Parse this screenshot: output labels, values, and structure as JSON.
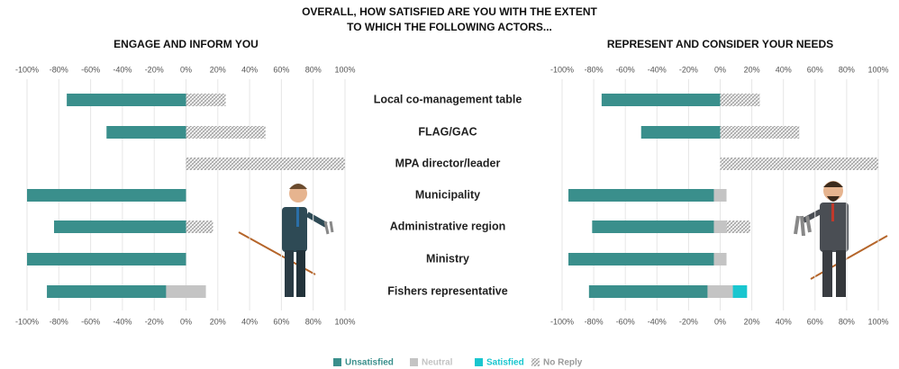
{
  "chart_data": {
    "type": "diverging_bar",
    "title": [
      "OVERALL, HOW SATISFIED ARE YOU WITH THE EXTENT",
      "TO WHICH THE FOLLOWING ACTORS..."
    ],
    "categories": [
      "Local co-management table",
      "FLAG/GAC",
      "MPA director/leader",
      "Municipality",
      "Administrative region",
      "Ministry",
      "Fishers representative"
    ],
    "xlim": [
      -100,
      100
    ],
    "xticks": [
      {
        "value": -100,
        "label": "-100%"
      },
      {
        "value": -80,
        "label": "-80%"
      },
      {
        "value": -60,
        "label": "-60%"
      },
      {
        "value": -40,
        "label": "-40%"
      },
      {
        "value": -20,
        "label": "-20%"
      },
      {
        "value": 0,
        "label": "0%"
      },
      {
        "value": 20,
        "label": "20%"
      },
      {
        "value": 40,
        "label": "40%"
      },
      {
        "value": 60,
        "label": "60%"
      },
      {
        "value": 80,
        "label": "80%"
      },
      {
        "value": 100,
        "label": "100%"
      }
    ],
    "grid": true,
    "series": [
      {
        "name": "Unsatisfied",
        "color": "#3a8f8c"
      },
      {
        "name": "Neutral",
        "color": "#c4c4c4"
      },
      {
        "name": "Satisfied",
        "color": "#19c6cf"
      },
      {
        "name": "No Reply",
        "color": "#9a9a9a",
        "pattern": "hatch"
      }
    ],
    "panels": [
      {
        "subtitle": "ENGAGE AND INFORM YOU",
        "series": [
          [
            75,
            50,
            0,
            100,
            83,
            100,
            75
          ],
          [
            0,
            0,
            0,
            0,
            0,
            0,
            25
          ],
          [
            0,
            0,
            0,
            0,
            0,
            0,
            0
          ],
          [
            25,
            50,
            100,
            0,
            17,
            0,
            0
          ]
        ]
      },
      {
        "subtitle": "REPRESENT AND CONSIDER YOUR NEEDS",
        "series": [
          [
            75,
            50,
            0,
            92,
            77,
            92,
            75
          ],
          [
            0,
            0,
            0,
            8,
            8,
            8,
            16
          ],
          [
            0,
            0,
            0,
            0,
            0,
            0,
            9
          ],
          [
            25,
            50,
            100,
            0,
            15,
            0,
            0
          ]
        ]
      }
    ]
  }
}
